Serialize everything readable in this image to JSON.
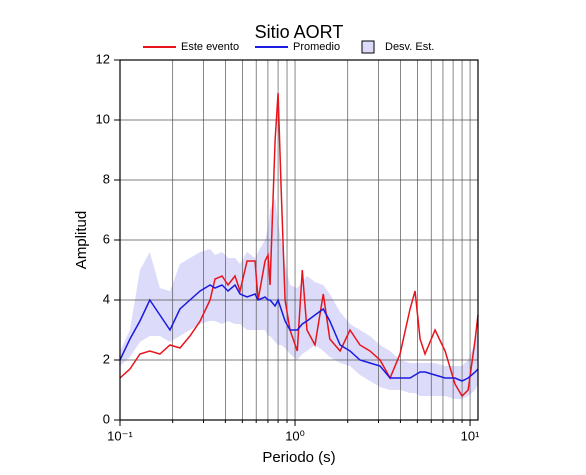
{
  "chart_data": {
    "type": "line",
    "title": "Sitio AORT",
    "x_label": "Periodo (s)",
    "y_label": "Amplitud",
    "x_scale": "log",
    "grid": true,
    "xlim": [
      0.1,
      11.1
    ],
    "ylim": [
      0,
      12
    ],
    "xticks": [
      {
        "value": 0.1,
        "label": "10⁻¹"
      },
      {
        "value": 1,
        "label": "10⁰"
      },
      {
        "value": 10,
        "label": "10¹"
      }
    ],
    "xminorticks": [
      0.2,
      0.3,
      0.4,
      0.5,
      0.6,
      0.7,
      0.8,
      0.9,
      2,
      3,
      4,
      5,
      6,
      7,
      8,
      9
    ],
    "yticks": [
      0,
      2,
      4,
      6,
      8,
      10,
      12
    ],
    "x": [
      0.1,
      0.114,
      0.13,
      0.148,
      0.169,
      0.193,
      0.22,
      0.251,
      0.287,
      0.327,
      0.349,
      0.383,
      0.414,
      0.454,
      0.485,
      0.532,
      0.591,
      0.615,
      0.674,
      0.701,
      0.72,
      0.769,
      0.8,
      0.832,
      0.877,
      0.936,
      1.03,
      1.1,
      1.17,
      1.3,
      1.45,
      1.58,
      1.81,
      2.06,
      2.35,
      2.68,
      3.06,
      3.49,
      3.98,
      4.54,
      4.85,
      5.18,
      5.53,
      6.31,
      7.2,
      8.2,
      9.0,
      9.75,
      10.7,
      11.1
    ],
    "series": [
      {
        "name": "Este evento",
        "color": "#e8141c",
        "values": [
          1.4,
          1.7,
          2.2,
          2.3,
          2.2,
          2.5,
          2.4,
          2.8,
          3.3,
          4.0,
          4.7,
          4.8,
          4.5,
          4.8,
          4.3,
          5.3,
          5.3,
          4.0,
          5.3,
          5.5,
          4.5,
          9.3,
          10.9,
          7.8,
          4.0,
          3.0,
          2.3,
          5.0,
          3.0,
          2.5,
          4.2,
          2.7,
          2.3,
          3.0,
          2.5,
          2.3,
          2.0,
          1.4,
          2.2,
          3.7,
          4.3,
          2.7,
          2.2,
          3.0,
          2.3,
          1.2,
          0.8,
          1.0,
          2.7,
          3.5
        ]
      },
      {
        "name": "Promedio",
        "color": "#1a1ae0",
        "values": [
          2.0,
          2.7,
          3.3,
          4.0,
          3.5,
          3.0,
          3.7,
          4.0,
          4.3,
          4.5,
          4.4,
          4.5,
          4.3,
          4.5,
          4.2,
          4.1,
          4.2,
          4.0,
          4.1,
          4.0,
          4.0,
          3.8,
          4.0,
          3.7,
          3.3,
          3.0,
          3.0,
          3.2,
          3.3,
          3.5,
          3.7,
          3.3,
          2.5,
          2.3,
          2.0,
          1.9,
          1.8,
          1.4,
          1.4,
          1.4,
          1.5,
          1.6,
          1.6,
          1.5,
          1.4,
          1.4,
          1.3,
          1.4,
          1.6,
          1.7
        ]
      }
    ],
    "band": {
      "name": "Desv. Est.",
      "color": "#dcdcfa",
      "lower": [
        1.8,
        2.1,
        2.6,
        2.8,
        2.8,
        2.6,
        2.8,
        3.0,
        3.2,
        3.3,
        3.3,
        3.2,
        3.3,
        3.2,
        3.2,
        3.0,
        3.0,
        3.0,
        3.0,
        2.8,
        2.8,
        2.6,
        2.5,
        2.5,
        2.4,
        2.2,
        2.0,
        2.2,
        2.3,
        2.5,
        2.3,
        2.1,
        1.9,
        1.8,
        1.5,
        1.3,
        1.1,
        1.0,
        1.0,
        0.9,
        0.9,
        0.8,
        0.8,
        0.8,
        0.8,
        0.7,
        0.7,
        0.8,
        1.0,
        1.2
      ],
      "upper": [
        2.3,
        3.0,
        5.0,
        5.6,
        4.4,
        4.3,
        5.2,
        5.4,
        5.6,
        5.7,
        5.5,
        5.6,
        5.4,
        5.4,
        5.2,
        5.6,
        5.4,
        5.6,
        6.0,
        6.4,
        7.0,
        7.4,
        6.6,
        6.0,
        5.2,
        4.5,
        4.4,
        4.6,
        4.8,
        4.6,
        4.5,
        4.2,
        3.6,
        3.2,
        3.0,
        2.8,
        2.5,
        2.3,
        2.0,
        1.9,
        1.9,
        1.9,
        1.9,
        1.9,
        1.8,
        1.8,
        1.8,
        2.0,
        2.6,
        3.0
      ]
    }
  }
}
